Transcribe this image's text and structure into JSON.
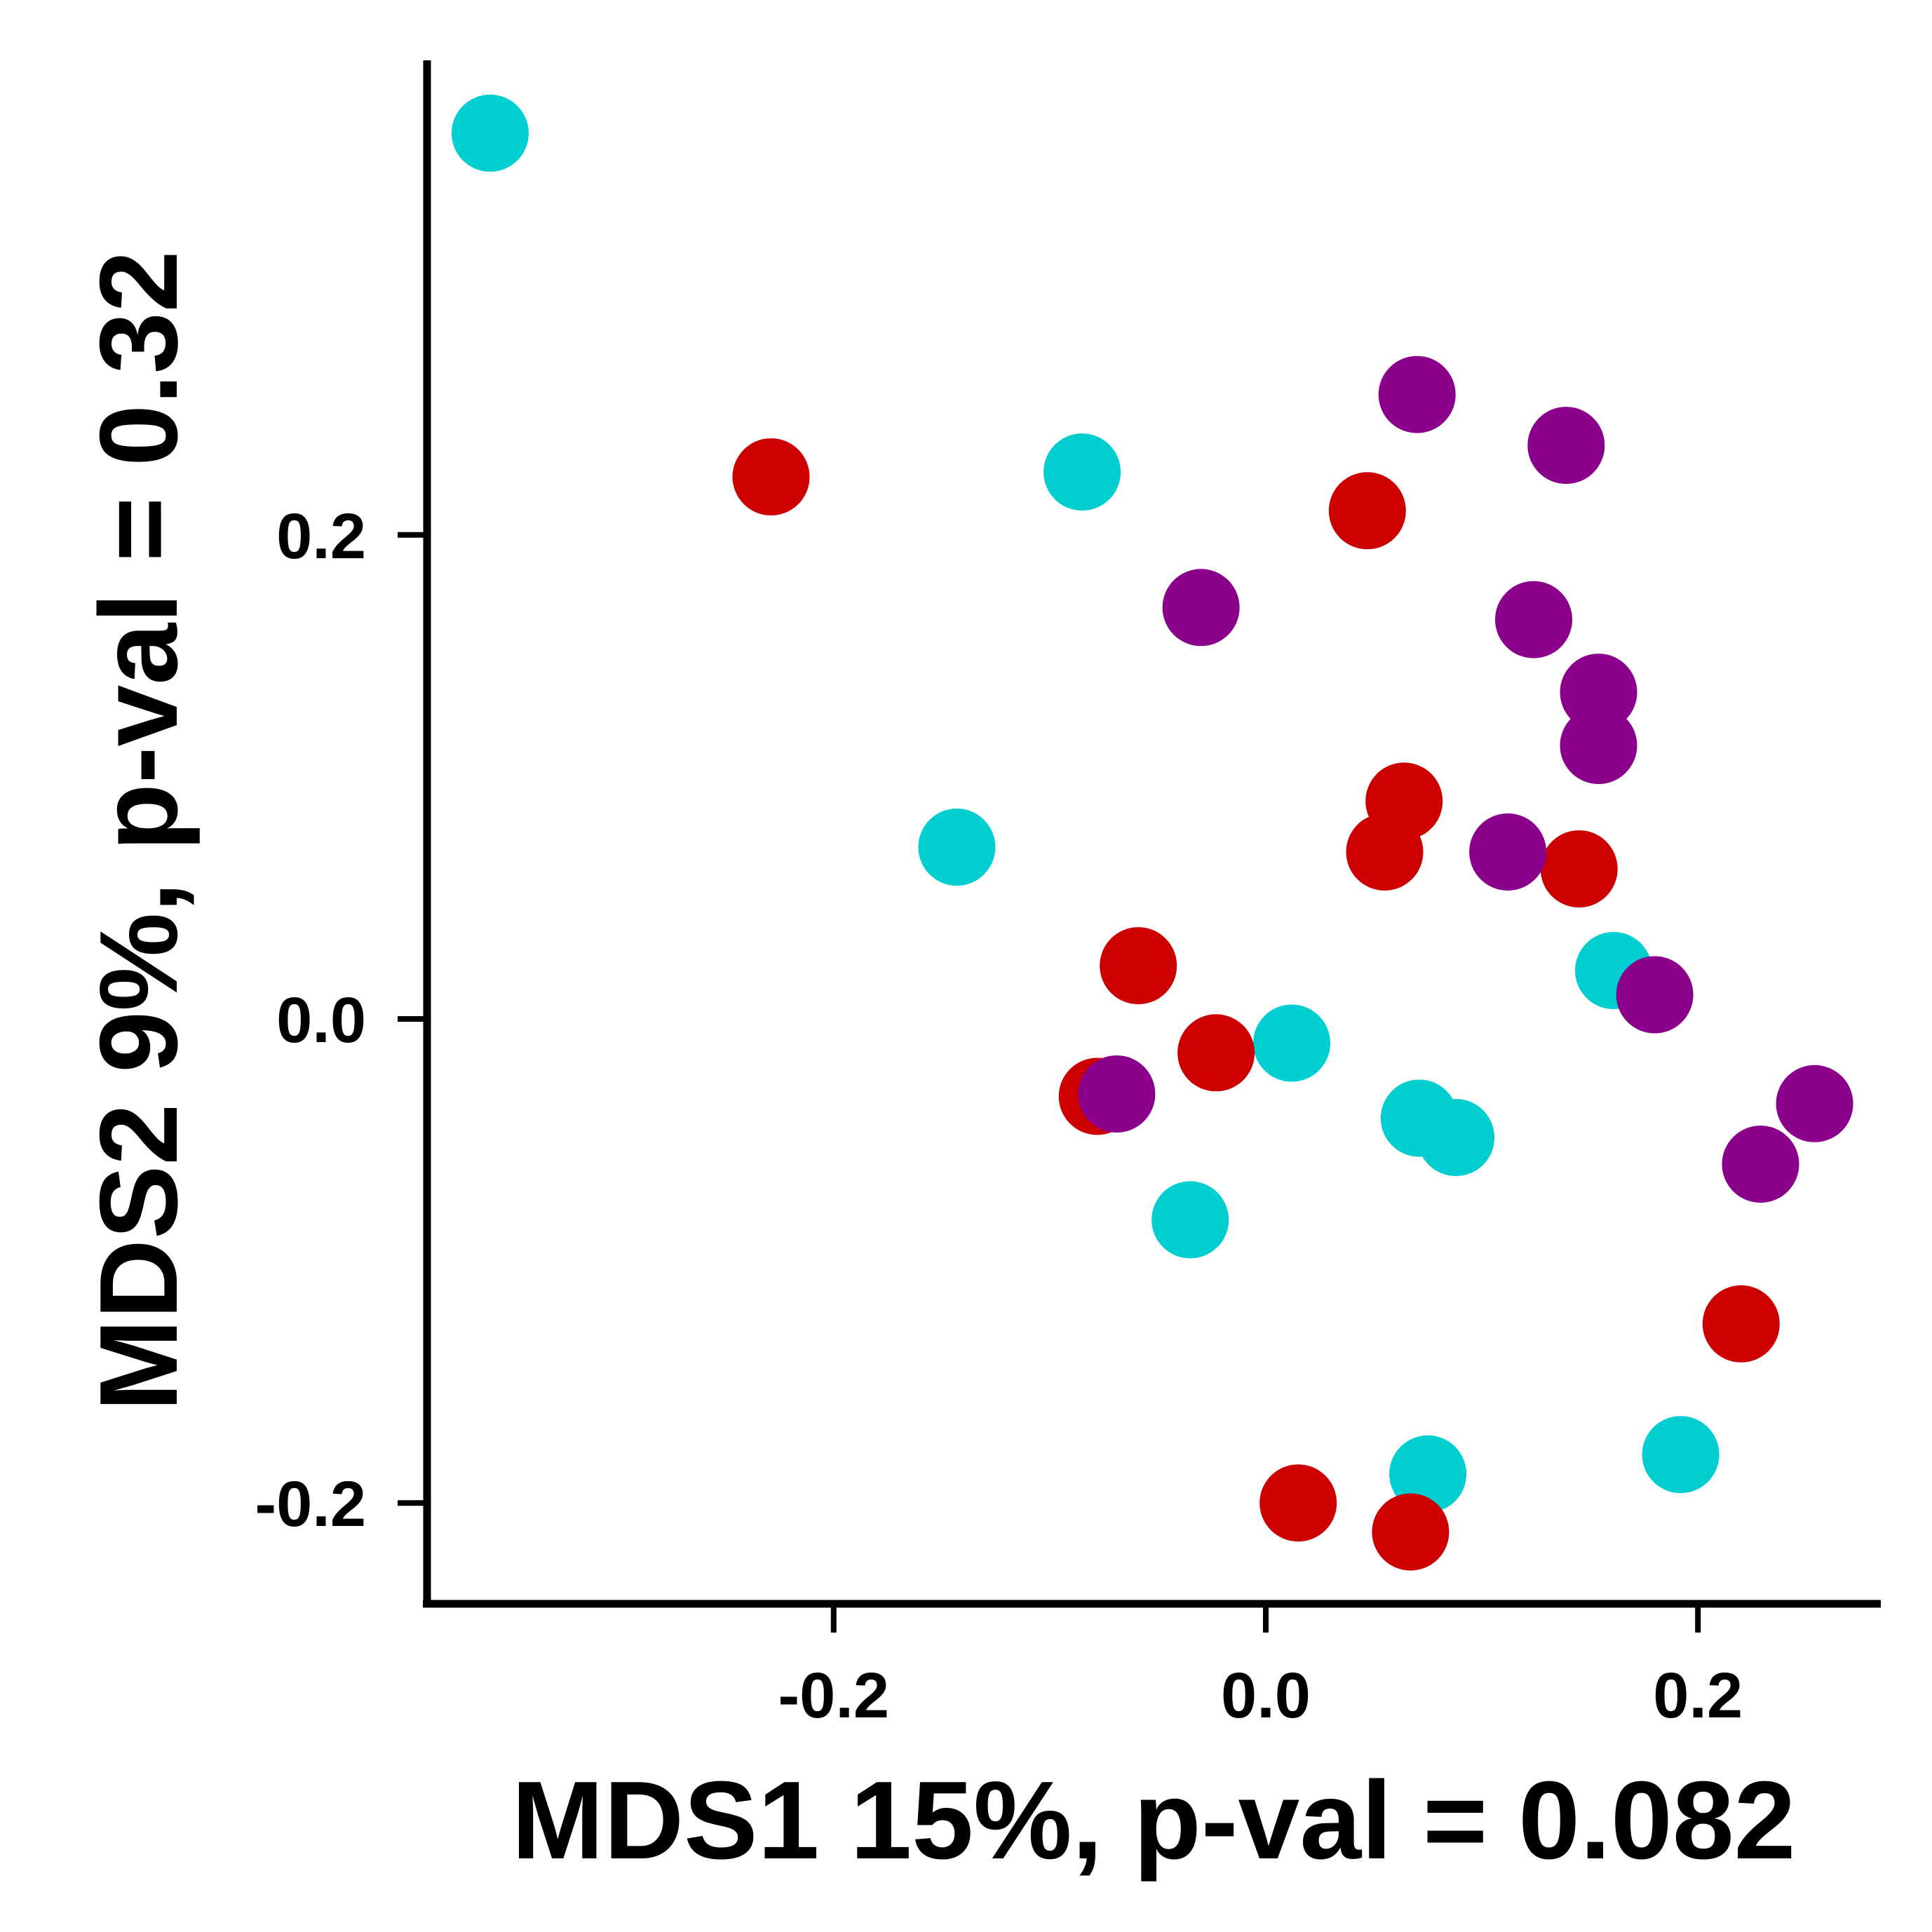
{
  "chart_data": {
    "type": "scatter",
    "title": "",
    "xlabel": "MDS1 15%, p-val = 0.082",
    "ylabel": "MDS2 9%, p-val = 0.32",
    "xlim": [
      -0.39,
      0.285
    ],
    "ylim": [
      -0.242,
      0.395
    ],
    "x_ticks": [
      -0.2,
      0.0,
      0.2
    ],
    "x_tick_labels": [
      "-0.2",
      "0.0",
      "0.2"
    ],
    "y_ticks": [
      -0.2,
      0.0,
      0.2
    ],
    "y_tick_labels": [
      "-0.2",
      "0.0",
      "0.2"
    ],
    "grid": false,
    "legend": "none",
    "series": [
      {
        "color": "#00CED1",
        "points": [
          {
            "x": -0.359,
            "y": 0.366
          },
          {
            "x": -0.085,
            "y": 0.226
          },
          {
            "x": -0.143,
            "y": 0.071
          },
          {
            "x": 0.161,
            "y": 0.02
          },
          {
            "x": 0.012,
            "y": -0.01
          },
          {
            "x": 0.071,
            "y": -0.041
          },
          {
            "x": 0.088,
            "y": -0.049
          },
          {
            "x": -0.035,
            "y": -0.083
          },
          {
            "x": 0.192,
            "y": -0.18
          },
          {
            "x": 0.075,
            "y": -0.188
          }
        ]
      },
      {
        "color": "#CC0000",
        "points": [
          {
            "x": -0.229,
            "y": 0.224
          },
          {
            "x": 0.047,
            "y": 0.21
          },
          {
            "x": 0.064,
            "y": 0.09
          },
          {
            "x": 0.055,
            "y": 0.069
          },
          {
            "x": 0.145,
            "y": 0.062
          },
          {
            "x": -0.059,
            "y": 0.022
          },
          {
            "x": -0.023,
            "y": -0.014
          },
          {
            "x": -0.078,
            "y": -0.032
          },
          {
            "x": 0.22,
            "y": -0.126
          },
          {
            "x": 0.015,
            "y": -0.2
          },
          {
            "x": 0.067,
            "y": -0.212
          }
        ]
      },
      {
        "color": "#8B008B",
        "points": [
          {
            "x": 0.07,
            "y": 0.258
          },
          {
            "x": 0.139,
            "y": 0.237
          },
          {
            "x": -0.03,
            "y": 0.17
          },
          {
            "x": 0.124,
            "y": 0.165
          },
          {
            "x": 0.154,
            "y": 0.135
          },
          {
            "x": 0.154,
            "y": 0.113
          },
          {
            "x": 0.112,
            "y": 0.069
          },
          {
            "x": 0.18,
            "y": 0.01
          },
          {
            "x": -0.069,
            "y": -0.031
          },
          {
            "x": 0.254,
            "y": -0.035
          },
          {
            "x": 0.229,
            "y": -0.06
          }
        ]
      }
    ]
  }
}
